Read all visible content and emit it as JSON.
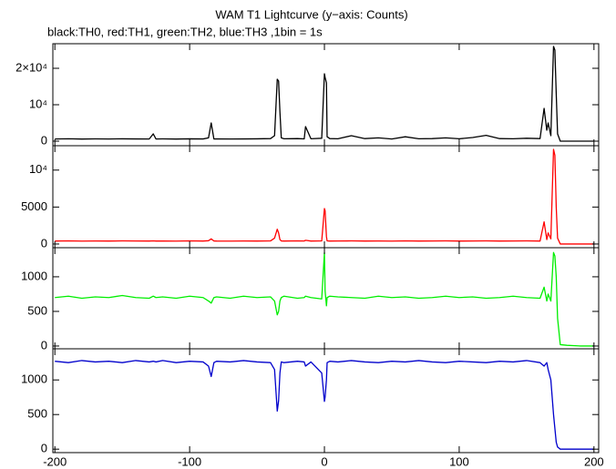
{
  "title": "WAM T1 Lightcurve (y−axis: Counts)",
  "subtitle": "black:TH0, red:TH1, green:TH2, blue:TH3 ,1bin = 1s",
  "chart_data": [
    {
      "type": "line",
      "color": "#000000",
      "x": [
        -200,
        -190,
        -180,
        -170,
        -160,
        -150,
        -140,
        -130,
        -127,
        -125,
        -120,
        -110,
        -100,
        -90,
        -86,
        -84,
        -82,
        -80,
        -70,
        -60,
        -50,
        -40,
        -37,
        -35,
        -34,
        -33,
        -32,
        -30,
        -20,
        -15,
        -14,
        -10,
        -2,
        0,
        0.5,
        1.5,
        2,
        4,
        10,
        20,
        30,
        40,
        50,
        60,
        70,
        80,
        90,
        100,
        110,
        120,
        130,
        140,
        150,
        160,
        163,
        165,
        166,
        168,
        170,
        171,
        172,
        173,
        175,
        180,
        190,
        200
      ],
      "values": [
        600,
        650,
        580,
        620,
        600,
        640,
        610,
        590,
        2000,
        600,
        620,
        580,
        640,
        610,
        900,
        5000,
        600,
        620,
        590,
        610,
        640,
        700,
        1500,
        17000,
        16500,
        8000,
        900,
        650,
        700,
        620,
        4000,
        650,
        800,
        18500,
        17500,
        16000,
        1200,
        700,
        650,
        1500,
        700,
        900,
        600,
        1200,
        650,
        700,
        900,
        650,
        1000,
        1600,
        700,
        650,
        800,
        700,
        9000,
        3000,
        5000,
        1500,
        26000,
        25000,
        13000,
        2000,
        0,
        0,
        0,
        0
      ],
      "xlim": [
        -201.5,
        203.5
      ],
      "ylim": [
        -1250,
        26750
      ],
      "yticks": [
        0,
        {
          "value": 10000,
          "label": "10⁴"
        },
        {
          "value": 20000,
          "label": "2×10⁴"
        }
      ]
    },
    {
      "type": "line",
      "color": "#ff0000",
      "x": [
        -200,
        -190,
        -180,
        -170,
        -160,
        -150,
        -140,
        -130,
        -127,
        -125,
        -120,
        -110,
        -100,
        -90,
        -86,
        -84,
        -82,
        -80,
        -70,
        -60,
        -50,
        -40,
        -37,
        -35,
        -34,
        -33,
        -32,
        -30,
        -20,
        -15,
        -14,
        -10,
        -2,
        0,
        0.5,
        1.5,
        2,
        4,
        10,
        20,
        30,
        40,
        50,
        60,
        70,
        80,
        90,
        100,
        110,
        120,
        130,
        140,
        150,
        160,
        163,
        165,
        166,
        168,
        170,
        171,
        172,
        173,
        175,
        180,
        190,
        200
      ],
      "values": [
        400,
        420,
        390,
        410,
        400,
        420,
        410,
        400,
        420,
        400,
        410,
        390,
        420,
        400,
        450,
        700,
        410,
        400,
        390,
        410,
        400,
        420,
        800,
        2000,
        1500,
        600,
        410,
        400,
        420,
        410,
        500,
        400,
        420,
        4800,
        4500,
        1000,
        420,
        400,
        410,
        420,
        400,
        410,
        390,
        420,
        400,
        410,
        420,
        400,
        410,
        420,
        400,
        410,
        420,
        400,
        3000,
        600,
        1500,
        700,
        12800,
        12000,
        5000,
        800,
        0,
        0,
        0,
        0
      ],
      "xlim": [
        -201.5,
        203.5
      ],
      "ylim": [
        -500,
        13300
      ],
      "yticks": [
        0,
        5000,
        {
          "value": 10000,
          "label": "10⁴"
        }
      ]
    },
    {
      "type": "line",
      "color": "#00ee00",
      "x": [
        -200,
        -190,
        -180,
        -170,
        -160,
        -150,
        -140,
        -130,
        -127,
        -125,
        -120,
        -110,
        -100,
        -90,
        -86,
        -84,
        -82,
        -80,
        -70,
        -60,
        -50,
        -40,
        -37,
        -35,
        -34,
        -33,
        -32,
        -30,
        -20,
        -15,
        -14,
        -10,
        -2,
        0,
        0.5,
        1.5,
        2,
        4,
        10,
        20,
        30,
        40,
        50,
        60,
        70,
        80,
        90,
        100,
        110,
        120,
        130,
        140,
        150,
        160,
        163,
        165,
        166,
        168,
        170,
        171,
        172,
        173,
        175,
        180,
        190,
        200
      ],
      "values": [
        700,
        720,
        690,
        710,
        700,
        730,
        700,
        690,
        720,
        700,
        710,
        690,
        720,
        700,
        650,
        620,
        700,
        710,
        690,
        720,
        700,
        710,
        650,
        450,
        500,
        650,
        700,
        720,
        690,
        700,
        720,
        700,
        680,
        1350,
        800,
        580,
        700,
        720,
        710,
        700,
        690,
        720,
        700,
        710,
        690,
        700,
        720,
        700,
        710,
        690,
        700,
        720,
        700,
        690,
        850,
        650,
        750,
        650,
        1350,
        1300,
        1000,
        400,
        20,
        10,
        0,
        0
      ],
      "xlim": [
        -201.5,
        203.5
      ],
      "ylim": [
        -40,
        1420
      ],
      "yticks": [
        0,
        500,
        1000
      ]
    },
    {
      "type": "line",
      "color": "#0000cc",
      "x": [
        -200,
        -190,
        -180,
        -170,
        -160,
        -150,
        -140,
        -130,
        -127,
        -125,
        -120,
        -110,
        -100,
        -90,
        -86,
        -84,
        -82,
        -80,
        -70,
        -60,
        -50,
        -40,
        -37,
        -35,
        -34,
        -33,
        -32,
        -30,
        -20,
        -15,
        -14,
        -10,
        -2,
        0,
        0.5,
        1.5,
        2,
        4,
        10,
        20,
        30,
        40,
        50,
        60,
        70,
        80,
        90,
        100,
        110,
        120,
        130,
        140,
        150,
        160,
        163,
        165,
        166,
        168,
        170,
        171,
        172,
        173,
        175,
        180,
        190,
        200
      ],
      "values": [
        1270,
        1250,
        1280,
        1260,
        1270,
        1250,
        1280,
        1260,
        1270,
        1260,
        1280,
        1250,
        1270,
        1260,
        1200,
        1050,
        1250,
        1270,
        1260,
        1280,
        1260,
        1250,
        1150,
        550,
        700,
        1100,
        1260,
        1250,
        1270,
        1260,
        1200,
        1260,
        1100,
        690,
        750,
        1000,
        1250,
        1270,
        1260,
        1280,
        1260,
        1250,
        1270,
        1260,
        1280,
        1260,
        1250,
        1270,
        1260,
        1250,
        1270,
        1260,
        1280,
        1250,
        1200,
        1250,
        1150,
        1000,
        500,
        300,
        100,
        30,
        0,
        0,
        0,
        0
      ],
      "xlim": [
        -201.5,
        203.5
      ],
      "ylim": [
        -50,
        1450
      ],
      "yticks": [
        0,
        500,
        1000
      ],
      "xticks": [
        -200,
        -100,
        0,
        100,
        200
      ]
    }
  ]
}
